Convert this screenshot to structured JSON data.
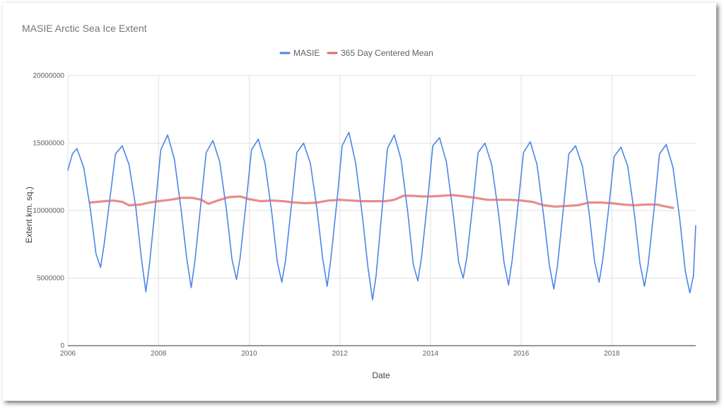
{
  "chart_data": {
    "type": "line",
    "title": "MASIE Arctic Sea Ice Extent",
    "xlabel": "Date",
    "ylabel": "Extent km. sq.)",
    "xlim": [
      2006,
      2019.85
    ],
    "ylim": [
      0,
      20000000
    ],
    "x_ticks": [
      "2006",
      "2008",
      "2010",
      "2012",
      "2014",
      "2016",
      "2018"
    ],
    "y_ticks": [
      "0",
      "5000000",
      "10000000",
      "15000000",
      "20000000"
    ],
    "grid": true,
    "legend_position": "top",
    "series": [
      {
        "name": "MASIE",
        "color": "#4a86e8",
        "x": [
          2006.0,
          2006.1,
          2006.2,
          2006.35,
          2006.5,
          2006.62,
          2006.72,
          2006.8,
          2006.95,
          2007.05,
          2007.2,
          2007.35,
          2007.5,
          2007.62,
          2007.72,
          2007.8,
          2007.95,
          2008.05,
          2008.2,
          2008.35,
          2008.5,
          2008.62,
          2008.72,
          2008.8,
          2008.95,
          2009.05,
          2009.2,
          2009.35,
          2009.5,
          2009.62,
          2009.72,
          2009.8,
          2009.95,
          2010.05,
          2010.2,
          2010.35,
          2010.5,
          2010.62,
          2010.72,
          2010.8,
          2010.95,
          2011.05,
          2011.2,
          2011.35,
          2011.5,
          2011.62,
          2011.72,
          2011.8,
          2011.95,
          2012.05,
          2012.2,
          2012.35,
          2012.5,
          2012.62,
          2012.72,
          2012.8,
          2012.95,
          2013.05,
          2013.2,
          2013.35,
          2013.5,
          2013.62,
          2013.72,
          2013.8,
          2013.95,
          2014.05,
          2014.2,
          2014.35,
          2014.5,
          2014.62,
          2014.72,
          2014.8,
          2014.95,
          2015.05,
          2015.2,
          2015.35,
          2015.5,
          2015.62,
          2015.72,
          2015.8,
          2015.95,
          2016.05,
          2016.2,
          2016.35,
          2016.5,
          2016.62,
          2016.72,
          2016.8,
          2016.95,
          2017.05,
          2017.2,
          2017.35,
          2017.5,
          2017.62,
          2017.72,
          2017.8,
          2017.95,
          2018.05,
          2018.2,
          2018.35,
          2018.5,
          2018.62,
          2018.72,
          2018.8,
          2018.95,
          2019.05,
          2019.2,
          2019.35,
          2019.5,
          2019.62,
          2019.72,
          2019.8,
          2019.85
        ],
        "values": [
          13000000,
          14200000,
          14600000,
          13200000,
          10000000,
          6800000,
          5800000,
          7500000,
          11500000,
          14200000,
          14800000,
          13400000,
          10200000,
          6500000,
          4000000,
          6000000,
          11000000,
          14500000,
          15600000,
          13800000,
          10000000,
          6500000,
          4300000,
          6200000,
          11000000,
          14300000,
          15200000,
          13600000,
          10000000,
          6400000,
          4900000,
          6500000,
          11200000,
          14500000,
          15300000,
          13500000,
          9800000,
          6200000,
          4700000,
          6300000,
          11000000,
          14300000,
          15000000,
          13500000,
          10000000,
          6500000,
          4400000,
          6400000,
          11200000,
          14800000,
          15800000,
          13500000,
          9500000,
          5800000,
          3400000,
          5200000,
          10800000,
          14600000,
          15600000,
          13800000,
          9800000,
          6000000,
          4800000,
          6500000,
          11200000,
          14800000,
          15400000,
          13600000,
          9800000,
          6200000,
          5000000,
          6500000,
          11000000,
          14300000,
          15000000,
          13400000,
          9800000,
          6200000,
          4500000,
          6300000,
          11000000,
          14300000,
          15100000,
          13400000,
          9500000,
          6000000,
          4200000,
          5900000,
          10800000,
          14200000,
          14800000,
          13300000,
          9800000,
          6200000,
          4700000,
          6400000,
          10800000,
          14000000,
          14700000,
          13300000,
          9700000,
          6100000,
          4400000,
          6000000,
          10700000,
          14200000,
          14900000,
          13200000,
          9300000,
          5500000,
          3900000,
          5200000,
          8900000
        ]
      },
      {
        "name": "365 Day Centered Mean",
        "color": "#e06666",
        "x": [
          2006.5,
          2006.8,
          2007.0,
          2007.2,
          2007.35,
          2007.6,
          2007.8,
          2008.0,
          2008.25,
          2008.5,
          2008.75,
          2008.95,
          2009.1,
          2009.3,
          2009.55,
          2009.8,
          2010.0,
          2010.25,
          2010.5,
          2010.75,
          2011.0,
          2011.25,
          2011.5,
          2011.75,
          2012.0,
          2012.25,
          2012.5,
          2012.75,
          2013.0,
          2013.2,
          2013.4,
          2013.6,
          2013.8,
          2014.0,
          2014.25,
          2014.5,
          2014.75,
          2015.0,
          2015.25,
          2015.5,
          2015.75,
          2016.0,
          2016.25,
          2016.5,
          2016.75,
          2017.0,
          2017.25,
          2017.5,
          2017.75,
          2018.0,
          2018.25,
          2018.5,
          2018.75,
          2019.0,
          2019.2,
          2019.35
        ],
        "values": [
          10600000,
          10700000,
          10750000,
          10650000,
          10400000,
          10450000,
          10600000,
          10700000,
          10800000,
          10950000,
          10950000,
          10800000,
          10500000,
          10750000,
          11000000,
          11050000,
          10850000,
          10700000,
          10750000,
          10700000,
          10600000,
          10550000,
          10600000,
          10750000,
          10800000,
          10750000,
          10700000,
          10700000,
          10700000,
          10800000,
          11100000,
          11100000,
          11050000,
          11050000,
          11100000,
          11150000,
          11050000,
          10950000,
          10800000,
          10800000,
          10800000,
          10750000,
          10650000,
          10400000,
          10300000,
          10350000,
          10400000,
          10600000,
          10600000,
          10550000,
          10450000,
          10400000,
          10450000,
          10450000,
          10300000,
          10200000
        ]
      }
    ]
  }
}
